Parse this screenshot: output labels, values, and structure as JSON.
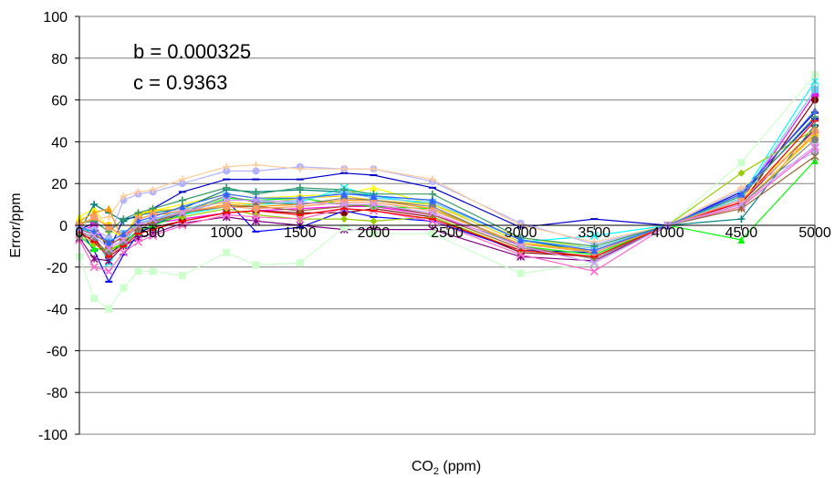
{
  "chart_data": {
    "type": "line",
    "xlabel_main": "CO",
    "xlabel_sub": "2",
    "xlabel_unit": " (ppm)",
    "ylabel": "Error/ppm",
    "xlim": [
      0,
      5000
    ],
    "ylim": [
      -100,
      100
    ],
    "xticks": [
      0,
      500,
      1000,
      1500,
      2000,
      2500,
      3000,
      3500,
      4000,
      4500,
      5000
    ],
    "yticks": [
      -100,
      -80,
      -60,
      -40,
      -20,
      0,
      20,
      40,
      60,
      80,
      100
    ],
    "grid": "horizontal",
    "legend": "none",
    "annotations": [
      "b = 0.000325",
      "c = 0.9363"
    ],
    "x": [
      0,
      100,
      200,
      300,
      400,
      500,
      700,
      1000,
      1200,
      1500,
      1800,
      2000,
      2400,
      3000,
      3500,
      4000,
      4500,
      5000
    ],
    "series": [
      {
        "color": "#0000cc",
        "marker": "dash",
        "values": [
          -2,
          1,
          -12,
          3,
          4,
          8,
          16,
          22,
          22,
          22,
          25,
          24,
          18,
          -1,
          3,
          0,
          16,
          54
        ]
      },
      {
        "color": "#ff00ff",
        "marker": "square",
        "values": [
          -3,
          0,
          -10,
          -5,
          0,
          1,
          3,
          6,
          7,
          8,
          9,
          9,
          5,
          -9,
          -12,
          0,
          12,
          63
        ]
      },
      {
        "color": "#ffff00",
        "marker": "triangle",
        "values": [
          4,
          8,
          -2,
          -6,
          6,
          7,
          10,
          15,
          13,
          14,
          15,
          18,
          10,
          -6,
          -11,
          0,
          13,
          46
        ]
      },
      {
        "color": "#00ffff",
        "marker": "x",
        "values": [
          -1,
          -4,
          -18,
          -9,
          1,
          3,
          5,
          9,
          10,
          11,
          18,
          14,
          10,
          -8,
          -5,
          0,
          14,
          69
        ]
      },
      {
        "color": "#800080",
        "marker": "star",
        "values": [
          -6,
          -16,
          -17,
          -10,
          -6,
          -4,
          1,
          4,
          2,
          0,
          -2,
          -2,
          -2,
          -15,
          -17,
          0,
          11,
          46
        ]
      },
      {
        "color": "#800000",
        "marker": "circle",
        "values": [
          -4,
          -7,
          -14,
          -8,
          -3,
          -1,
          2,
          6,
          7,
          6,
          6,
          8,
          4,
          -13,
          -15,
          0,
          10,
          60
        ]
      },
      {
        "color": "#008080",
        "marker": "plus",
        "values": [
          -3,
          10,
          6,
          2,
          5,
          6,
          8,
          17,
          16,
          17,
          16,
          14,
          12,
          -7,
          -13,
          0,
          3,
          48
        ]
      },
      {
        "color": "#0000ff",
        "marker": "dash",
        "values": [
          -2,
          -12,
          -27,
          -14,
          -4,
          0,
          6,
          12,
          -3,
          -1,
          7,
          4,
          2,
          -12,
          -13,
          0,
          15,
          51
        ]
      },
      {
        "color": "#b3b3ff",
        "marker": "circle",
        "values": [
          -1,
          -2,
          -6,
          12,
          15,
          16,
          20,
          26,
          26,
          28,
          27,
          27,
          21,
          1,
          -9,
          0,
          17,
          35
        ]
      },
      {
        "color": "#ffcc99",
        "marker": "plus",
        "values": [
          0,
          3,
          4,
          14,
          16,
          17,
          22,
          28,
          29,
          27,
          27,
          27,
          22,
          0,
          -8,
          0,
          18,
          42
        ]
      },
      {
        "color": "#00ff00",
        "marker": "triangle",
        "values": [
          -5,
          -11,
          -12,
          -9,
          -3,
          0,
          5,
          13,
          12,
          13,
          10,
          9,
          8,
          -10,
          -14,
          0,
          -7,
          31
        ]
      },
      {
        "color": "#ccffcc",
        "marker": "square",
        "values": [
          -15,
          -35,
          -40,
          -30,
          -22,
          -22,
          -24,
          -13,
          -19,
          -18,
          -1,
          -4,
          -4,
          -23,
          -18,
          0,
          30,
          72
        ]
      },
      {
        "color": "#99cc00",
        "marker": "diamond",
        "values": [
          -4,
          -9,
          -12,
          -8,
          1,
          2,
          4,
          8,
          5,
          3,
          3,
          2,
          4,
          -12,
          -15,
          0,
          25,
          46
        ]
      },
      {
        "color": "#ff9900",
        "marker": "triangle",
        "values": [
          2,
          6,
          8,
          -8,
          3,
          5,
          6,
          10,
          9,
          10,
          12,
          12,
          8,
          -9,
          -12,
          0,
          9,
          44
        ]
      },
      {
        "color": "#ffcc00",
        "marker": "circle",
        "values": [
          1,
          3,
          0,
          -6,
          5,
          7,
          8,
          11,
          10,
          13,
          14,
          12,
          10,
          -8,
          -13,
          0,
          10,
          43
        ]
      },
      {
        "color": "#ff66cc",
        "marker": "x",
        "values": [
          -7,
          -20,
          -22,
          -13,
          -8,
          -5,
          0,
          5,
          4,
          3,
          8,
          7,
          2,
          -14,
          -22,
          0,
          9,
          37
        ]
      },
      {
        "color": "#66ccff",
        "marker": "square",
        "values": [
          -2,
          -5,
          -8,
          -4,
          1,
          3,
          7,
          14,
          11,
          12,
          16,
          13,
          11,
          -7,
          -11,
          0,
          13,
          65
        ]
      },
      {
        "color": "#339966",
        "marker": "plus",
        "values": [
          1,
          2,
          -3,
          3,
          6,
          8,
          12,
          18,
          15,
          18,
          17,
          15,
          15,
          -6,
          -10,
          0,
          14,
          52
        ]
      },
      {
        "color": "#808080",
        "marker": "circle",
        "values": [
          -3,
          -6,
          -14,
          -9,
          -2,
          1,
          6,
          14,
          11,
          10,
          13,
          12,
          9,
          -10,
          -16,
          0,
          10,
          41
        ]
      },
      {
        "color": "#996633",
        "marker": "star",
        "values": [
          -2,
          -4,
          -9,
          -6,
          -1,
          2,
          6,
          9,
          9,
          7,
          9,
          10,
          5,
          -11,
          -15,
          0,
          8,
          33
        ]
      },
      {
        "color": "#ff0000",
        "marker": "dash",
        "values": [
          -3,
          -8,
          -15,
          -10,
          -4,
          -2,
          2,
          6,
          7,
          5,
          8,
          7,
          3,
          -12,
          -15,
          0,
          11,
          50
        ]
      },
      {
        "color": "#ff9966",
        "marker": "circle",
        "values": [
          0,
          4,
          -1,
          -5,
          3,
          5,
          7,
          9,
          8,
          9,
          11,
          11,
          7,
          -9,
          -13,
          0,
          12,
          45
        ]
      },
      {
        "color": "#3366ff",
        "marker": "triangle",
        "values": [
          -1,
          -3,
          -8,
          -4,
          2,
          4,
          9,
          15,
          13,
          13,
          15,
          14,
          12,
          -7,
          -12,
          0,
          15,
          55
        ]
      },
      {
        "color": "#cc99ff",
        "marker": "x",
        "values": [
          -2,
          -5,
          -11,
          -7,
          0,
          3,
          6,
          12,
          12,
          11,
          10,
          10,
          6,
          -10,
          -18,
          0,
          10,
          38
        ]
      }
    ]
  }
}
